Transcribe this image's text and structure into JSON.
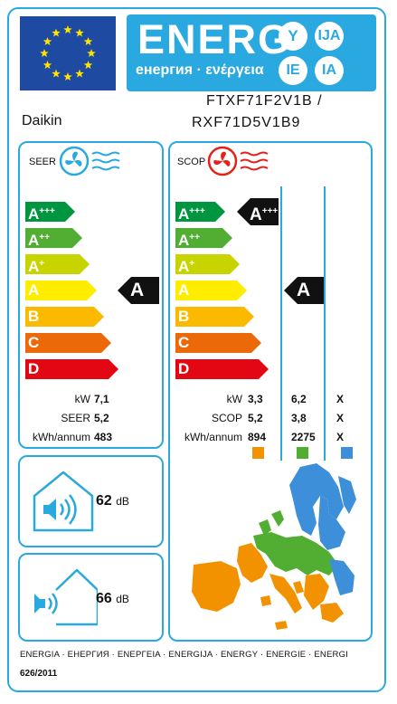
{
  "header": {
    "energy_word": "ENERG",
    "subtitle": "енергия · ενέργεια",
    "lang_codes": [
      "Y",
      "IJA",
      "IE",
      "IA"
    ],
    "colors": {
      "eu_blue": "#1e4ba1",
      "eu_star": "#ffe200",
      "label_blue": "#29a9df"
    }
  },
  "supplier": "Daikin",
  "model": {
    "line1": "FTXF71F2V1B /",
    "line2": "RXF71D5V1B9"
  },
  "cooling": {
    "title": "SEER",
    "icon": "fan-snowflake-icon",
    "class": "A",
    "scale": [
      {
        "letter": "A",
        "sup": "+++",
        "color": "#009640"
      },
      {
        "letter": "A",
        "sup": "++",
        "color": "#52ae32"
      },
      {
        "letter": "A",
        "sup": "+",
        "color": "#c8d400"
      },
      {
        "letter": "A",
        "sup": "",
        "color": "#ffed00"
      },
      {
        "letter": "B",
        "sup": "",
        "color": "#fbba00"
      },
      {
        "letter": "C",
        "sup": "",
        "color": "#eb6909"
      },
      {
        "letter": "D",
        "sup": "",
        "color": "#e30613"
      }
    ],
    "rows": [
      {
        "label": "kW",
        "value": "7,1"
      },
      {
        "label": "SEER",
        "value": "5,2"
      },
      {
        "label": "kWh/annum",
        "value": "483"
      }
    ]
  },
  "heating": {
    "title": "SCOP",
    "icon": "fan-sun-icon",
    "reference_class": {
      "letter": "A",
      "sup": "+++"
    },
    "class": "A",
    "rows": [
      {
        "label": "kW",
        "values": [
          "3,3",
          "6,2",
          "X"
        ]
      },
      {
        "label": "SCOP",
        "values": [
          "5,2",
          "3,8",
          "X"
        ]
      },
      {
        "label": "kWh/annum",
        "values": [
          "894",
          "2275",
          "X"
        ]
      }
    ],
    "zone_colors": [
      "#f39200",
      "#52ae32",
      "#3c8fd8"
    ]
  },
  "noise": {
    "indoor": {
      "value": "62",
      "unit": "dB"
    },
    "outdoor": {
      "value": "66",
      "unit": "dB"
    }
  },
  "footer": {
    "languages": "ENERGIA · ЕНЕРГИЯ · ΕΝΕΡΓΕΙΑ · ENERGIJA · ENERGY · ENERGIE · ENERGI",
    "regulation": "626/2011"
  }
}
